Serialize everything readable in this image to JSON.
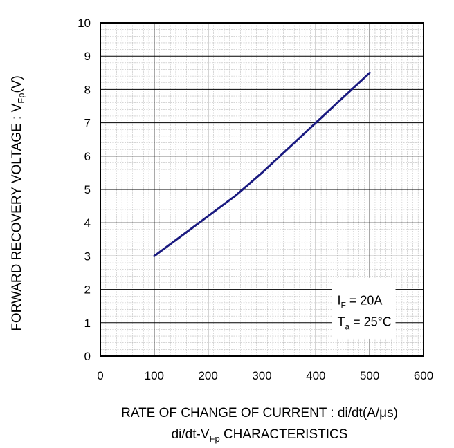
{
  "chart_data": {
    "type": "line",
    "xlabel": {
      "main": "RATE OF CHANGE OF CURRENT : di/dt(A/",
      "mu": "μ",
      "tail": "s)"
    },
    "ylabel": {
      "main": "FORWARD RECOVERY  VOLTAGE : V",
      "sub": "Fp",
      "tail": "(V)"
    },
    "caption": {
      "main": "di/dt-V",
      "sub": "Fp",
      "tail": "  CHARACTERISTICS"
    },
    "xlim": [
      0,
      600
    ],
    "ylim": [
      0,
      10
    ],
    "x_ticks": [
      "0",
      "100",
      "200",
      "300",
      "400",
      "500",
      "600"
    ],
    "y_ticks": [
      "0",
      "1",
      "2",
      "3",
      "4",
      "5",
      "6",
      "7",
      "8",
      "9",
      "10"
    ],
    "grid": true,
    "minor_grid": true,
    "series": [
      {
        "color": "#1a1a80",
        "x": [
          100,
          150,
          200,
          250,
          300,
          350,
          400,
          450,
          500
        ],
        "y": [
          3.0,
          3.6,
          4.2,
          4.8,
          5.5,
          6.25,
          7.0,
          7.75,
          8.5
        ]
      }
    ],
    "annotation": {
      "line1": {
        "main": "I",
        "sub": "F",
        "tail": " = 20A"
      },
      "line2": {
        "main": "T",
        "sub": "a",
        "tail": " = 25°C"
      }
    }
  }
}
